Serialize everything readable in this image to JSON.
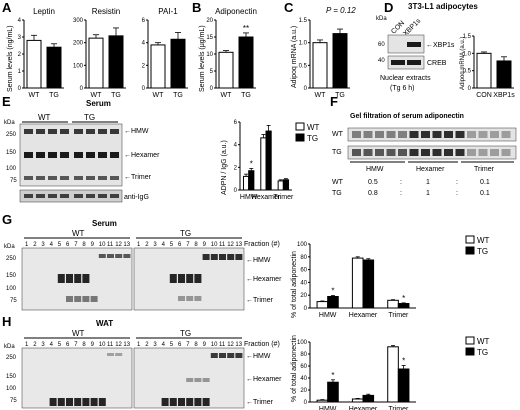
{
  "colors": {
    "wt": "#ffffff",
    "tg": "#000000",
    "blot_bg": "#e4e4e4",
    "band": "#1a1a1a"
  },
  "panels": {
    "A": {
      "label": "A",
      "ylabel": "Serum levels (ng/mL)"
    },
    "B": {
      "label": "B",
      "ylabel": "Serum levels (μg/mL)"
    },
    "C": {
      "label": "C",
      "ylabel": "Adipoq mRNA (a.u.)",
      "annotation": "P = 0.12"
    },
    "D": {
      "label": "D",
      "title": "3T3-L1 adipocytes",
      "lanes": [
        "CON",
        "XBP1s"
      ],
      "kda": [
        "60",
        "40"
      ],
      "bands": [
        "XBP1s",
        "CREB"
      ],
      "caption1": "Nuclear extracts",
      "caption2": "(Tg 6 h)",
      "ylabel": "Adipoq mRNA (a.u.)"
    },
    "E": {
      "label": "E",
      "blot_title": "Serum",
      "kda_header": "kDa",
      "kda": [
        "250",
        "150",
        "100",
        "75"
      ],
      "groups": [
        "WT",
        "TG"
      ],
      "bands": [
        "HMW",
        "Hexamer",
        "Trimer"
      ],
      "loading": "anti-IgG",
      "ylabel": "ADPN / IgG (a.u.)"
    },
    "F": {
      "label": "F",
      "title": "Gel filtration of serum adiponectin",
      "rows": [
        "WT",
        "TG"
      ],
      "cols": [
        "HMW",
        "Hexamer",
        "Trimer"
      ],
      "table": [
        [
          "WT",
          "0.5",
          ":",
          "1",
          ":",
          "0.1"
        ],
        [
          "TG",
          "0.8",
          ":",
          "1",
          ":",
          "0.1"
        ]
      ]
    },
    "G": {
      "label": "G",
      "title": "Serum",
      "kda_header": "kDa",
      "groups": [
        "WT",
        "TG"
      ],
      "fractions": [
        "1",
        "2",
        "3",
        "4",
        "5",
        "6",
        "7",
        "8",
        "9",
        "10",
        "11",
        "12",
        "13"
      ],
      "fraction_label": "Fraction (#)",
      "kda": [
        "250",
        "150",
        "100",
        "75"
      ],
      "bands": [
        "HMW",
        "Hexamer",
        "Trimer"
      ],
      "ylabel": "% of total adiponectin"
    },
    "H": {
      "label": "H",
      "title": "WAT",
      "kda_header": "kDa",
      "groups": [
        "WT",
        "TG"
      ],
      "fractions": [
        "1",
        "2",
        "3",
        "4",
        "5",
        "6",
        "7",
        "8",
        "9",
        "10",
        "11",
        "12",
        "13"
      ],
      "fraction_label": "Fraction (#)",
      "kda": [
        "250",
        "150",
        "100",
        "75"
      ],
      "bands": [
        "HMW",
        "Hexamer",
        "Trimer"
      ],
      "ylabel": "% of total adiponectin"
    }
  },
  "legend": {
    "wt": "WT",
    "tg": "TG"
  },
  "chart_data": [
    {
      "id": "A-leptin",
      "type": "bar",
      "title": "Leptin",
      "categories": [
        "WT",
        "TG"
      ],
      "values": [
        2.8,
        2.4
      ],
      "errors": [
        0.3,
        0.2
      ],
      "ylim": [
        0,
        4
      ],
      "yticks": [
        "0",
        "1",
        "2",
        "3",
        "4"
      ],
      "sig": ""
    },
    {
      "id": "A-resistin",
      "type": "bar",
      "title": "Resistin",
      "categories": [
        "WT",
        "TG"
      ],
      "values": [
        220,
        230
      ],
      "errors": [
        15,
        35
      ],
      "ylim": [
        0,
        300
      ],
      "yticks": [
        "0",
        "100",
        "200",
        "300"
      ],
      "sig": ""
    },
    {
      "id": "A-pai1",
      "type": "bar",
      "title": "PAI-1",
      "categories": [
        "WT",
        "TG"
      ],
      "values": [
        3.8,
        4.3
      ],
      "errors": [
        0.2,
        0.6
      ],
      "ylim": [
        0,
        6
      ],
      "yticks": [
        "0",
        "2",
        "4",
        "6"
      ],
      "sig": ""
    },
    {
      "id": "B-adiponectin",
      "type": "bar",
      "title": "Adiponectin",
      "categories": [
        "WT",
        "TG"
      ],
      "values": [
        10.5,
        15
      ],
      "errors": [
        0.5,
        1.2
      ],
      "ylim": [
        0,
        20
      ],
      "yticks": [
        "0",
        "5",
        "10",
        "15",
        "20"
      ],
      "sig": "**"
    },
    {
      "id": "C-adipoq",
      "type": "bar",
      "title": "",
      "categories": [
        "WT",
        "TG"
      ],
      "values": [
        1.0,
        1.2
      ],
      "errors": [
        0.06,
        0.1
      ],
      "ylim": [
        0,
        1.5
      ],
      "yticks": [
        "0",
        "0.5",
        "1.0",
        "1.5"
      ],
      "sig": ""
    },
    {
      "id": "D-adipoq",
      "type": "bar",
      "title": "",
      "categories": [
        "CON",
        "XBP1s"
      ],
      "values": [
        1.0,
        0.78
      ],
      "errors": [
        0.04,
        0.12
      ],
      "ylim": [
        0,
        1.5
      ],
      "yticks": [
        "0",
        "0.5",
        "1.0",
        "1.5"
      ],
      "sig": ""
    },
    {
      "id": "E-adpn-igg",
      "type": "bar",
      "categories": [
        "HMW",
        "Hexamer",
        "Trimer"
      ],
      "series": [
        {
          "name": "WT",
          "values": [
            1.2,
            4.6,
            0.8
          ],
          "errors": [
            0.2,
            0.3,
            0.1
          ]
        },
        {
          "name": "TG",
          "values": [
            1.7,
            5.2,
            0.9
          ],
          "errors": [
            0.2,
            0.5,
            0.1
          ]
        }
      ],
      "sig": [
        "*",
        "",
        ""
      ],
      "ylim": [
        0,
        6
      ],
      "yticks": [
        "0",
        "2",
        "4",
        "6"
      ]
    },
    {
      "id": "G-serum",
      "type": "bar",
      "categories": [
        "HMW",
        "Hexamer",
        "Trimer"
      ],
      "series": [
        {
          "name": "WT",
          "values": [
            10,
            78,
            12
          ],
          "errors": [
            1,
            2,
            1
          ]
        },
        {
          "name": "TG",
          "values": [
            18,
            75,
            7
          ],
          "errors": [
            1.5,
            2,
            1
          ]
        }
      ],
      "sig": [
        "*",
        "",
        "*"
      ],
      "ylim": [
        0,
        100
      ],
      "yticks": [
        "0",
        "20",
        "40",
        "60",
        "80",
        "100"
      ]
    },
    {
      "id": "H-wat",
      "type": "bar",
      "categories": [
        "HMW",
        "Hexamer",
        "Trimer"
      ],
      "series": [
        {
          "name": "WT",
          "values": [
            3,
            5,
            92
          ],
          "errors": [
            1,
            1,
            2
          ]
        },
        {
          "name": "TG",
          "values": [
            33,
            11,
            55
          ],
          "errors": [
            4,
            2,
            6
          ]
        }
      ],
      "sig": [
        "*",
        "",
        "*"
      ],
      "ylim": [
        0,
        100
      ],
      "yticks": [
        "0",
        "20",
        "40",
        "60",
        "80",
        "100"
      ]
    }
  ]
}
